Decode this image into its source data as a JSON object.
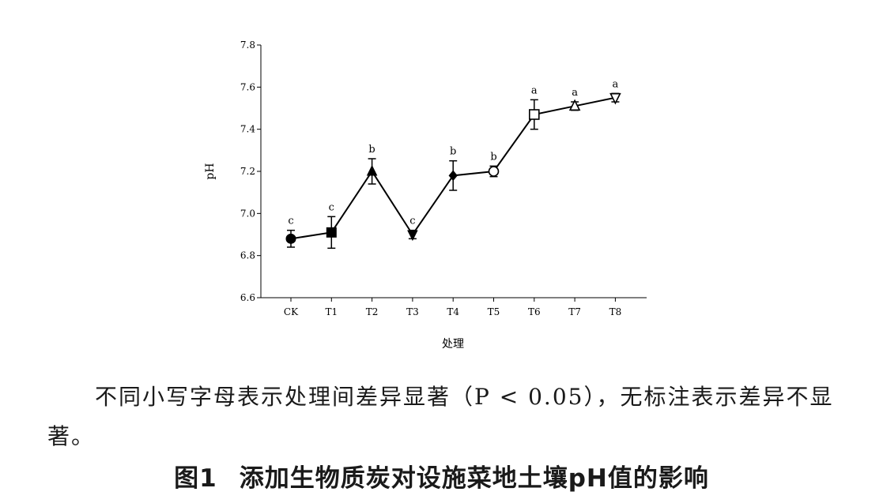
{
  "chart_data": {
    "type": "line",
    "xlabel": "处理",
    "ylabel": "pH",
    "categories": [
      "CK",
      "T1",
      "T2",
      "T3",
      "T4",
      "T5",
      "T6",
      "T7",
      "T8"
    ],
    "values": [
      6.88,
      6.91,
      7.2,
      6.9,
      7.18,
      7.2,
      7.47,
      7.51,
      7.55
    ],
    "errors": [
      0.04,
      0.075,
      0.06,
      0.02,
      0.07,
      0.025,
      0.07,
      0.02,
      0.02
    ],
    "significance": [
      "c",
      "c",
      "b",
      "c",
      "b",
      "b",
      "a",
      "a",
      "a"
    ],
    "markers": [
      "filled-circle",
      "filled-square",
      "filled-triangle-up",
      "filled-triangle-down",
      "filled-diamond",
      "open-circle",
      "open-square",
      "open-triangle-up",
      "open-triangle-down"
    ],
    "ylim": [
      6.6,
      7.8
    ],
    "yticks": [
      "6.6",
      "6.8",
      "7.0",
      "7.2",
      "7.4",
      "7.6",
      "7.8"
    ],
    "grid": false,
    "line_color": "#000000"
  },
  "note": "不同小写字母表示处理间差异显著（P < 0.05），无标注表示差异不显著。",
  "caption": {
    "number": "图1",
    "title": "添加生物质炭对设施菜地土壤pH值的影响"
  }
}
